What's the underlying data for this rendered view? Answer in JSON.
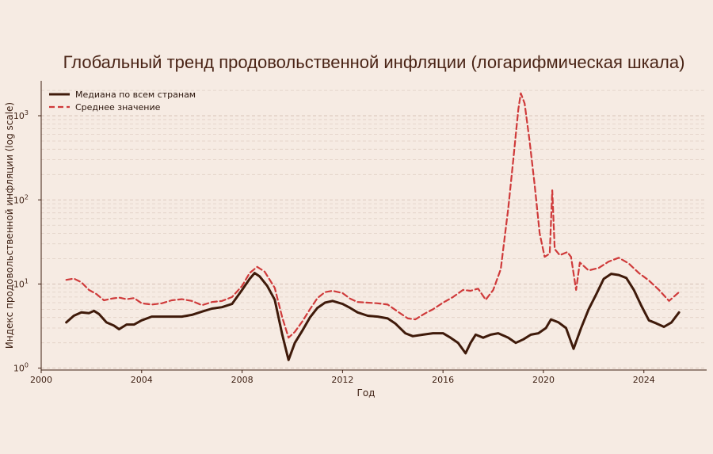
{
  "chart_data": {
    "type": "line",
    "title": "Глобальный тренд продовольственной инфляции (логарифмическая шкала)",
    "xlabel": "Год",
    "ylabel": "Индекс продовольственной инфляции (log scale)",
    "x_scale": "linear",
    "y_scale": "log",
    "xlim": [
      2000,
      2026.5
    ],
    "ylim": [
      0.95,
      2600
    ],
    "x_ticks": [
      2000,
      2004,
      2008,
      2012,
      2016,
      2020,
      2024
    ],
    "y_ticks": [
      1,
      10,
      100,
      1000
    ],
    "y_tick_labels": [
      {
        "base": "10",
        "exp": "0"
      },
      {
        "base": "10",
        "exp": "1"
      },
      {
        "base": "10",
        "exp": "2"
      },
      {
        "base": "10",
        "exp": "3"
      }
    ],
    "grid": "horizontal-dashed",
    "legend_position": "top-left",
    "series": [
      {
        "name": "Медиана по всем странам",
        "style": "solid",
        "color": "#3f1a0a",
        "points": [
          [
            2001.0,
            3.5
          ],
          [
            2001.3,
            4.2
          ],
          [
            2001.6,
            4.6
          ],
          [
            2001.9,
            4.5
          ],
          [
            2002.1,
            4.8
          ],
          [
            2002.3,
            4.4
          ],
          [
            2002.6,
            3.5
          ],
          [
            2002.9,
            3.2
          ],
          [
            2003.1,
            2.9
          ],
          [
            2003.4,
            3.3
          ],
          [
            2003.7,
            3.3
          ],
          [
            2004.0,
            3.7
          ],
          [
            2004.4,
            4.1
          ],
          [
            2004.8,
            4.1
          ],
          [
            2005.2,
            4.1
          ],
          [
            2005.6,
            4.1
          ],
          [
            2006.0,
            4.3
          ],
          [
            2006.4,
            4.7
          ],
          [
            2006.8,
            5.1
          ],
          [
            2007.2,
            5.3
          ],
          [
            2007.6,
            5.8
          ],
          [
            2008.0,
            8.5
          ],
          [
            2008.3,
            11.5
          ],
          [
            2008.5,
            13.5
          ],
          [
            2008.7,
            12.3
          ],
          [
            2009.0,
            9.5
          ],
          [
            2009.3,
            6.5
          ],
          [
            2009.6,
            2.5
          ],
          [
            2009.85,
            1.25
          ],
          [
            2010.1,
            2.0
          ],
          [
            2010.4,
            2.8
          ],
          [
            2010.7,
            4.0
          ],
          [
            2011.0,
            5.2
          ],
          [
            2011.3,
            6.0
          ],
          [
            2011.6,
            6.3
          ],
          [
            2012.0,
            5.8
          ],
          [
            2012.3,
            5.2
          ],
          [
            2012.6,
            4.6
          ],
          [
            2013.0,
            4.2
          ],
          [
            2013.4,
            4.1
          ],
          [
            2013.8,
            3.9
          ],
          [
            2014.1,
            3.4
          ],
          [
            2014.5,
            2.6
          ],
          [
            2014.8,
            2.4
          ],
          [
            2015.2,
            2.5
          ],
          [
            2015.6,
            2.6
          ],
          [
            2016.0,
            2.6
          ],
          [
            2016.3,
            2.3
          ],
          [
            2016.6,
            2.0
          ],
          [
            2016.9,
            1.5
          ],
          [
            2017.1,
            2.0
          ],
          [
            2017.3,
            2.5
          ],
          [
            2017.6,
            2.3
          ],
          [
            2017.9,
            2.5
          ],
          [
            2018.2,
            2.6
          ],
          [
            2018.6,
            2.3
          ],
          [
            2018.9,
            2.0
          ],
          [
            2019.2,
            2.2
          ],
          [
            2019.5,
            2.5
          ],
          [
            2019.8,
            2.6
          ],
          [
            2020.1,
            3.0
          ],
          [
            2020.3,
            3.8
          ],
          [
            2020.6,
            3.5
          ],
          [
            2020.9,
            3.0
          ],
          [
            2021.2,
            1.7
          ],
          [
            2021.5,
            3.0
          ],
          [
            2021.8,
            5.0
          ],
          [
            2022.1,
            7.5
          ],
          [
            2022.4,
            11.5
          ],
          [
            2022.7,
            13.2
          ],
          [
            2023.0,
            12.8
          ],
          [
            2023.3,
            11.8
          ],
          [
            2023.6,
            8.5
          ],
          [
            2023.9,
            5.5
          ],
          [
            2024.2,
            3.7
          ],
          [
            2024.5,
            3.4
          ],
          [
            2024.8,
            3.1
          ],
          [
            2025.1,
            3.5
          ],
          [
            2025.4,
            4.6
          ]
        ]
      },
      {
        "name": "Среднее значение",
        "style": "dashed",
        "color": "#cf3a3a",
        "points": [
          [
            2001.0,
            11.2
          ],
          [
            2001.3,
            11.6
          ],
          [
            2001.6,
            10.5
          ],
          [
            2001.9,
            8.5
          ],
          [
            2002.2,
            7.6
          ],
          [
            2002.5,
            6.4
          ],
          [
            2002.8,
            6.7
          ],
          [
            2003.1,
            6.9
          ],
          [
            2003.4,
            6.6
          ],
          [
            2003.7,
            6.8
          ],
          [
            2004.0,
            5.9
          ],
          [
            2004.4,
            5.7
          ],
          [
            2004.8,
            5.9
          ],
          [
            2005.2,
            6.4
          ],
          [
            2005.6,
            6.6
          ],
          [
            2006.0,
            6.3
          ],
          [
            2006.4,
            5.6
          ],
          [
            2006.8,
            6.1
          ],
          [
            2007.2,
            6.3
          ],
          [
            2007.6,
            7.0
          ],
          [
            2008.0,
            9.5
          ],
          [
            2008.3,
            13.5
          ],
          [
            2008.6,
            16.0
          ],
          [
            2008.9,
            14.0
          ],
          [
            2009.3,
            9.0
          ],
          [
            2009.6,
            4.0
          ],
          [
            2009.85,
            2.3
          ],
          [
            2010.1,
            2.7
          ],
          [
            2010.4,
            3.6
          ],
          [
            2010.7,
            5.0
          ],
          [
            2011.0,
            6.8
          ],
          [
            2011.3,
            8.0
          ],
          [
            2011.6,
            8.3
          ],
          [
            2012.0,
            7.8
          ],
          [
            2012.3,
            6.7
          ],
          [
            2012.6,
            6.1
          ],
          [
            2013.0,
            6.0
          ],
          [
            2013.4,
            5.9
          ],
          [
            2013.8,
            5.7
          ],
          [
            2014.2,
            4.7
          ],
          [
            2014.6,
            3.9
          ],
          [
            2014.9,
            3.8
          ],
          [
            2015.3,
            4.5
          ],
          [
            2015.6,
            5.0
          ],
          [
            2016.0,
            6.0
          ],
          [
            2016.4,
            7.0
          ],
          [
            2016.8,
            8.5
          ],
          [
            2017.1,
            8.3
          ],
          [
            2017.4,
            8.8
          ],
          [
            2017.7,
            6.5
          ],
          [
            2018.0,
            8.5
          ],
          [
            2018.3,
            15.0
          ],
          [
            2018.6,
            80.0
          ],
          [
            2018.8,
            300.0
          ],
          [
            2019.0,
            1200.0
          ],
          [
            2019.1,
            1850.0
          ],
          [
            2019.25,
            1400.0
          ],
          [
            2019.45,
            500.0
          ],
          [
            2019.65,
            150.0
          ],
          [
            2019.85,
            40.0
          ],
          [
            2020.05,
            21.0
          ],
          [
            2020.25,
            23.0
          ],
          [
            2020.35,
            130.0
          ],
          [
            2020.45,
            26.0
          ],
          [
            2020.65,
            22.0
          ],
          [
            2020.95,
            24.0
          ],
          [
            2021.1,
            21.0
          ],
          [
            2021.3,
            8.5
          ],
          [
            2021.45,
            18.0
          ],
          [
            2021.8,
            14.5
          ],
          [
            2022.2,
            15.5
          ],
          [
            2022.6,
            18.5
          ],
          [
            2023.0,
            20.5
          ],
          [
            2023.4,
            17.5
          ],
          [
            2023.8,
            13.5
          ],
          [
            2024.2,
            11.0
          ],
          [
            2024.6,
            8.5
          ],
          [
            2025.0,
            6.3
          ],
          [
            2025.4,
            8.0
          ]
        ]
      }
    ]
  }
}
